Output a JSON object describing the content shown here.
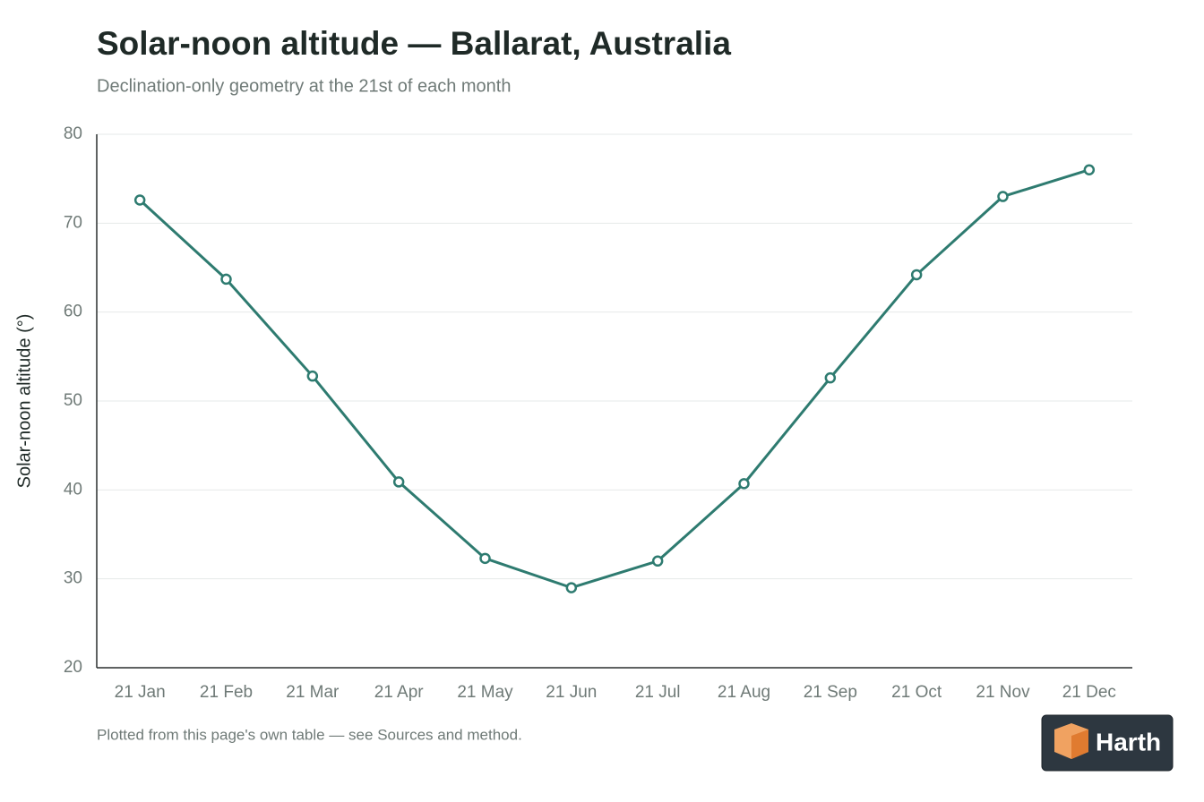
{
  "chart_data": {
    "type": "line",
    "title": "Solar-noon altitude — Ballarat, Australia",
    "subtitle": "Declination-only geometry at the 21st of each month",
    "y_label": "Solar-noon altitude (°)",
    "note": "Plotted from this page's own table — see Sources and method.",
    "brand": "Harth",
    "categories": [
      "21 Jan",
      "21 Feb",
      "21 Mar",
      "21 Apr",
      "21 May",
      "21 Jun",
      "21 Jul",
      "21 Aug",
      "21 Sep",
      "21 Oct",
      "21 Nov",
      "21 Dec"
    ],
    "values": [
      72.6,
      63.7,
      52.8,
      40.9,
      32.3,
      29.0,
      32.0,
      40.7,
      52.6,
      64.2,
      73.0,
      76.0
    ],
    "color": "#2e7b70",
    "ylim": [
      20,
      80
    ],
    "yticks": [
      20,
      30,
      40,
      50,
      60,
      70,
      80
    ],
    "grid": true
  }
}
